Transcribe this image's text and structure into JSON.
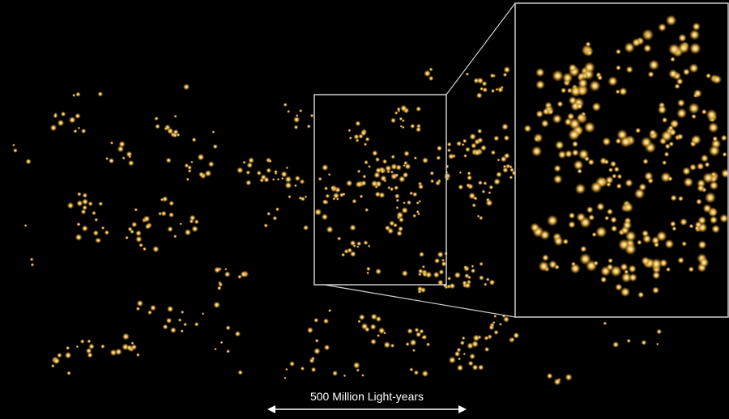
{
  "scale_bar": {
    "label": "500 Million Light-years"
  }
}
